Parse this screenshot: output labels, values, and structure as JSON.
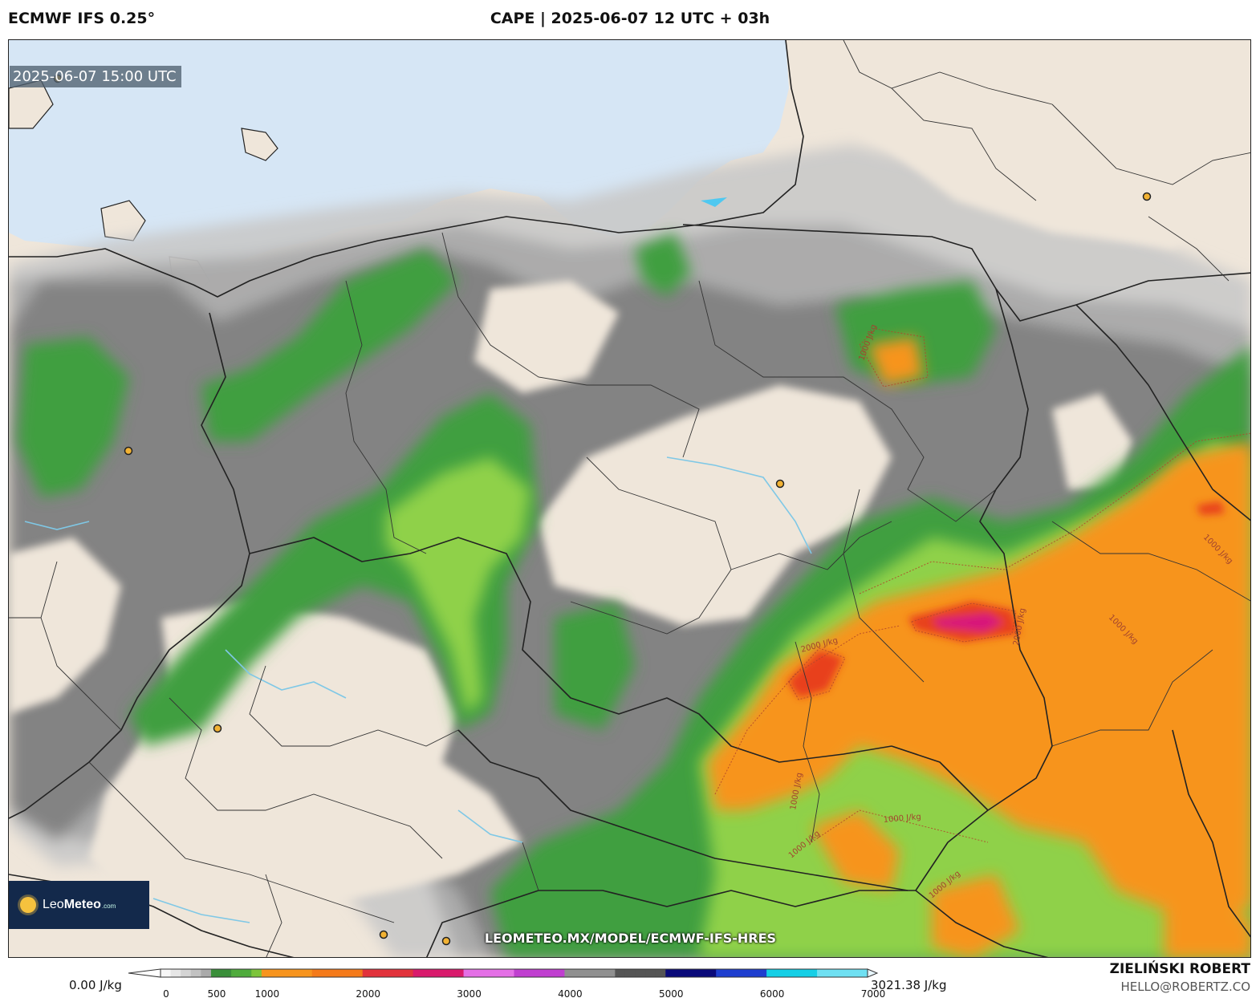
{
  "header": {
    "model": "ECMWF IFS 0.25°",
    "title": "CAPE | 2025-06-07 12 UTC + 03h"
  },
  "map": {
    "valid_time": "2025-06-07 15:00 UTC",
    "url": "LEOMETEO.MX/MODEL/ECMWF-IFS-HRES",
    "logo": {
      "text_light": "Leo",
      "text_bold": "Meteo",
      "suffix": ".com"
    },
    "contour_labels": [
      "1000 J/kg",
      "2000 J/kg"
    ],
    "colors": {
      "land": "#efe6da",
      "sea": "#d6e6f5",
      "border": "#222222",
      "river": "#7fc8e6"
    }
  },
  "legend": {
    "min_label": "0.00 J/kg",
    "max_label": "3021.38 J/kg",
    "ticks": [
      "0",
      "500",
      "1000",
      "2000",
      "3000",
      "4000",
      "5000",
      "6000",
      "7000"
    ]
  },
  "footer": {
    "author": "ZIELIŃSKI ROBERT",
    "email": "HELLO@ROBERTZ.CO"
  }
}
